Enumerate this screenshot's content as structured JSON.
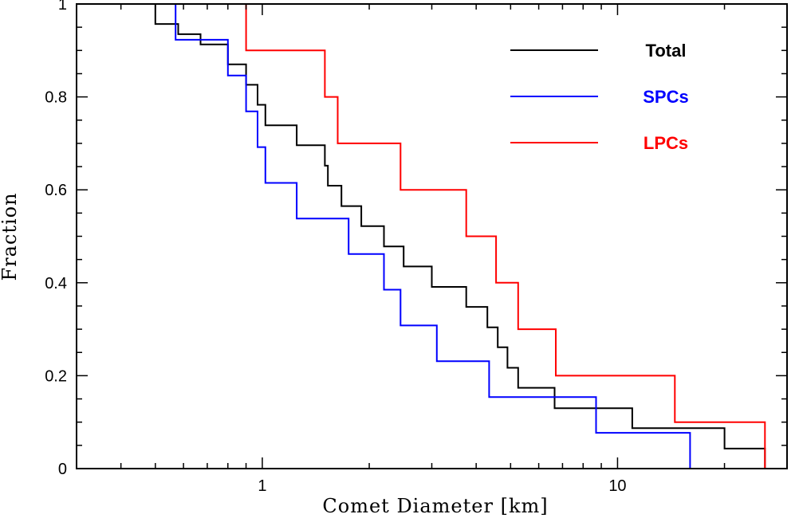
{
  "chart_data": {
    "type": "line",
    "subtype": "step-cumulative",
    "xlabel": "Comet Diameter [km]",
    "ylabel": "Fraction",
    "xscale": "log",
    "xlim": [
      0.3,
      30
    ],
    "ylim": [
      0,
      1
    ],
    "x_ticks": [
      {
        "value": 1,
        "label": "1"
      },
      {
        "value": 10,
        "label": "10"
      }
    ],
    "y_ticks": [
      {
        "value": 0,
        "label": "0"
      },
      {
        "value": 0.2,
        "label": "0.2"
      },
      {
        "value": 0.4,
        "label": "0.4"
      },
      {
        "value": 0.6,
        "label": "0.6"
      },
      {
        "value": 0.8,
        "label": "0.8"
      },
      {
        "value": 1,
        "label": "1"
      }
    ],
    "legend_position": "top-right",
    "series": [
      {
        "name": "Total",
        "color": "#000000",
        "x": [
          0.3,
          0.5,
          0.58,
          0.67,
          0.8,
          0.9,
          0.97,
          1.02,
          1.25,
          1.5,
          1.53,
          1.67,
          1.9,
          2.2,
          2.5,
          3.0,
          3.75,
          4.3,
          4.6,
          4.9,
          5.25,
          6.65,
          8.5,
          11.0,
          20.0,
          26.0
        ],
        "y": [
          1.0,
          0.957,
          0.935,
          0.913,
          0.87,
          0.826,
          0.783,
          0.739,
          0.696,
          0.652,
          0.609,
          0.565,
          0.522,
          0.478,
          0.435,
          0.391,
          0.348,
          0.304,
          0.261,
          0.217,
          0.174,
          0.13,
          0.13,
          0.087,
          0.043,
          0.0
        ]
      },
      {
        "name": "SPCs",
        "color": "#0000ff",
        "x": [
          0.3,
          0.57,
          0.8,
          0.9,
          0.97,
          1.02,
          1.25,
          1.75,
          2.2,
          2.45,
          3.1,
          4.35,
          8.7,
          16.0
        ],
        "y": [
          1.0,
          0.923,
          0.846,
          0.769,
          0.692,
          0.615,
          0.538,
          0.462,
          0.385,
          0.308,
          0.231,
          0.154,
          0.077,
          0.0
        ]
      },
      {
        "name": "LPCs",
        "color": "#ff0000",
        "x": [
          0.3,
          0.9,
          1.5,
          1.63,
          2.45,
          3.75,
          4.55,
          5.25,
          6.7,
          14.5,
          26.0
        ],
        "y": [
          1.0,
          0.9,
          0.8,
          0.7,
          0.6,
          0.5,
          0.4,
          0.3,
          0.2,
          0.1,
          0.0
        ]
      }
    ]
  }
}
